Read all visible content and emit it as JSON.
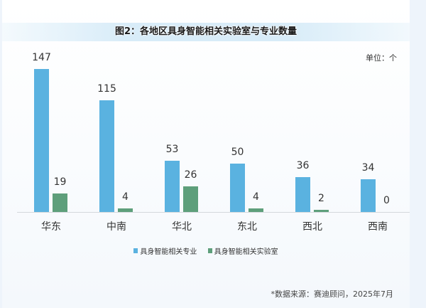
{
  "title": "图2：各地区具身智能相关实验室与专业数量",
  "unit": "单位：个",
  "source": "*数据来源：赛迪顾问，2025年7月",
  "colors": {
    "majors": "#5ab2e0",
    "labs": "#5e9f7b"
  },
  "legend": [
    "具身智能相关专业",
    "具身智能相关实验室"
  ],
  "categories": [
    "华东",
    "中南",
    "华北",
    "东北",
    "西北",
    "西南"
  ],
  "chart_data": {
    "type": "bar",
    "title": "图2：各地区具身智能相关实验室与专业数量",
    "categories": [
      "华东",
      "中南",
      "华北",
      "东北",
      "西北",
      "西南"
    ],
    "series": [
      {
        "name": "具身智能相关专业",
        "values": [
          147,
          115,
          53,
          50,
          36,
          34
        ],
        "color": "#5ab2e0"
      },
      {
        "name": "具身智能相关实验室",
        "values": [
          19,
          4,
          26,
          4,
          2,
          0
        ],
        "color": "#5e9f7b"
      }
    ],
    "xlabel": "",
    "ylabel": "单位：个",
    "ylim": [
      0,
      150
    ],
    "grid": false,
    "legend_position": "bottom",
    "data_labels": true
  }
}
